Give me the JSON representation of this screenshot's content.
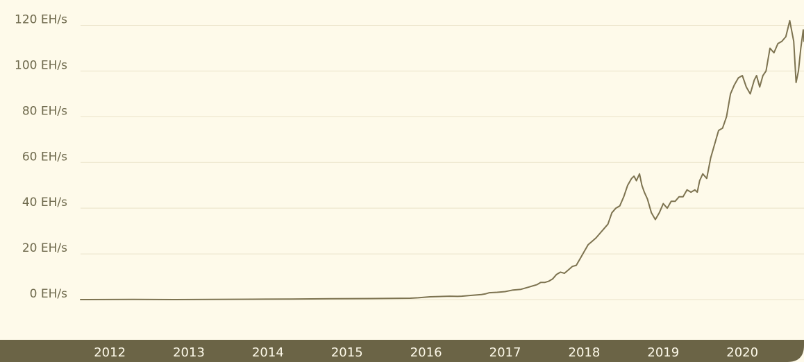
{
  "colors": {
    "background": "#fefaea",
    "gridline": "#e9e2c8",
    "axis_band": "#6b6446",
    "line": "#7d7350",
    "tick_text": "#6f6a4d",
    "band_text": "#fefaea"
  },
  "chart_data": {
    "type": "line",
    "title": "",
    "xlabel": "",
    "ylabel": "",
    "legend": "none",
    "grid": "horizontal",
    "ylim": [
      0,
      120
    ],
    "xlim": [
      2011.83,
      2020.98
    ],
    "y_ticks": [
      {
        "value": 0,
        "label": "0 EH/s"
      },
      {
        "value": 20,
        "label": "20 EH/s"
      },
      {
        "value": 40,
        "label": "40 EH/s"
      },
      {
        "value": 60,
        "label": "60 EH/s"
      },
      {
        "value": 80,
        "label": "80 EH/s"
      },
      {
        "value": 100,
        "label": "100 EH/s"
      },
      {
        "value": 120,
        "label": "120 EH/s"
      }
    ],
    "x_ticks": [
      {
        "value": 2012.2,
        "label": "2012"
      },
      {
        "value": 2013.2,
        "label": "2013"
      },
      {
        "value": 2014.2,
        "label": "2014"
      },
      {
        "value": 2015.2,
        "label": "2015"
      },
      {
        "value": 2016.2,
        "label": "2016"
      },
      {
        "value": 2017.2,
        "label": "2017"
      },
      {
        "value": 2018.2,
        "label": "2018"
      },
      {
        "value": 2019.2,
        "label": "2019"
      },
      {
        "value": 2020.2,
        "label": "2020"
      }
    ],
    "series": [
      {
        "x": [
          2011.83,
          2012.5,
          2013.0,
          2013.5,
          2014.0,
          2014.5,
          2015.0,
          2015.5,
          2016.0,
          2016.1,
          2016.25,
          2016.5,
          2016.6,
          2016.65,
          2016.75,
          2016.9,
          2016.95,
          2017.0,
          2017.1,
          2017.2,
          2017.3,
          2017.4,
          2017.5,
          2017.6,
          2017.65,
          2017.7,
          2017.75,
          2017.8,
          2017.85,
          2017.9,
          2017.95,
          2018.0,
          2018.05,
          2018.1,
          2018.15,
          2018.2,
          2018.25,
          2018.3,
          2018.35,
          2018.4,
          2018.45,
          2018.5,
          2018.55,
          2018.6,
          2018.65,
          2018.7,
          2018.75,
          2018.8,
          2018.83,
          2018.86,
          2018.9,
          2018.93,
          2018.96,
          2019.0,
          2019.05,
          2019.1,
          2019.15,
          2019.2,
          2019.25,
          2019.3,
          2019.35,
          2019.4,
          2019.45,
          2019.5,
          2019.55,
          2019.6,
          2019.63,
          2019.66,
          2019.7,
          2019.75,
          2019.8,
          2019.85,
          2019.9,
          2019.95,
          2020.0,
          2020.05,
          2020.1,
          2020.15,
          2020.2,
          2020.25,
          2020.3,
          2020.35,
          2020.38,
          2020.42,
          2020.46,
          2020.5,
          2020.55,
          2020.6,
          2020.65,
          2020.7,
          2020.75,
          2020.8,
          2020.85,
          2020.88,
          2020.91,
          2020.94,
          2020.97,
          2020.98
        ],
        "y": [
          0,
          0.05,
          0.01,
          0.05,
          0.15,
          0.25,
          0.35,
          0.45,
          0.6,
          0.8,
          1.2,
          1.5,
          1.4,
          1.5,
          1.8,
          2.2,
          2.5,
          3.0,
          3.2,
          3.5,
          4.2,
          4.5,
          5.5,
          6.5,
          7.5,
          7.5,
          8.0,
          9.0,
          11.0,
          12.0,
          11.5,
          13.0,
          14.5,
          15.0,
          18.0,
          21.0,
          24.0,
          25.5,
          27.0,
          29.0,
          31.0,
          33.0,
          38.0,
          40.0,
          41.0,
          45.0,
          50.0,
          53.0,
          54.0,
          52.0,
          55.0,
          50.0,
          47.0,
          44.0,
          38.0,
          35.0,
          38.0,
          42.0,
          40.0,
          43.0,
          43.0,
          45.0,
          45.0,
          48.0,
          47.0,
          48.0,
          47.0,
          52.0,
          55.0,
          53.0,
          62.0,
          68.0,
          74.0,
          75.0,
          80.0,
          90.0,
          94.0,
          97.0,
          98.0,
          93.0,
          90.0,
          96.0,
          98.0,
          93.0,
          98.0,
          100.0,
          110.0,
          108.0,
          112.0,
          113.0,
          115.0,
          122.0,
          113.0,
          95.0,
          100.0,
          110.0,
          118.0,
          113.0
        ]
      }
    ]
  }
}
